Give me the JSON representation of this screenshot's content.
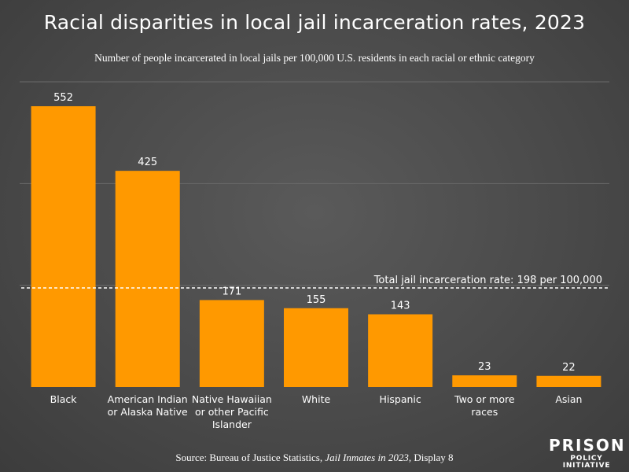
{
  "title": "Racial disparities in local jail incarceration rates, 2023",
  "subtitle": "Number of people incarcerated in local jails per 100,000 U.S. residents in each racial or ethnic category",
  "source": {
    "prefix": "Source: Bureau of Justice Statistics, ",
    "title": "Jail Inmates in 2023",
    "suffix": ", Display 8"
  },
  "logo": {
    "top": "PRISON",
    "bottom": "POLICY INITIATIVE"
  },
  "colors": {
    "bar": "#ff9900",
    "background": "#4a4a4a",
    "text": "#ffffff"
  },
  "chart_data": {
    "type": "bar",
    "title": "Racial disparities in local jail incarceration rates, 2023",
    "subtitle": "Number of people incarcerated in local jails per 100,000 U.S. residents in each racial or ethnic category",
    "categories": [
      [
        "Black"
      ],
      [
        "American Indian",
        "or Alaska Native"
      ],
      [
        "Native Hawaiian",
        "or other Pacific",
        "Islander"
      ],
      [
        "White"
      ],
      [
        "Hispanic"
      ],
      [
        "Two or more",
        "races"
      ],
      [
        "Asian"
      ]
    ],
    "values": [
      552,
      425,
      171,
      155,
      143,
      23,
      22
    ],
    "ylim": [
      0,
      600
    ],
    "reference_line": {
      "value": 198,
      "label": "Total jail incarceration rate: 198 per 100,000",
      "style": "dashed"
    },
    "grid": true,
    "legend": "none"
  }
}
